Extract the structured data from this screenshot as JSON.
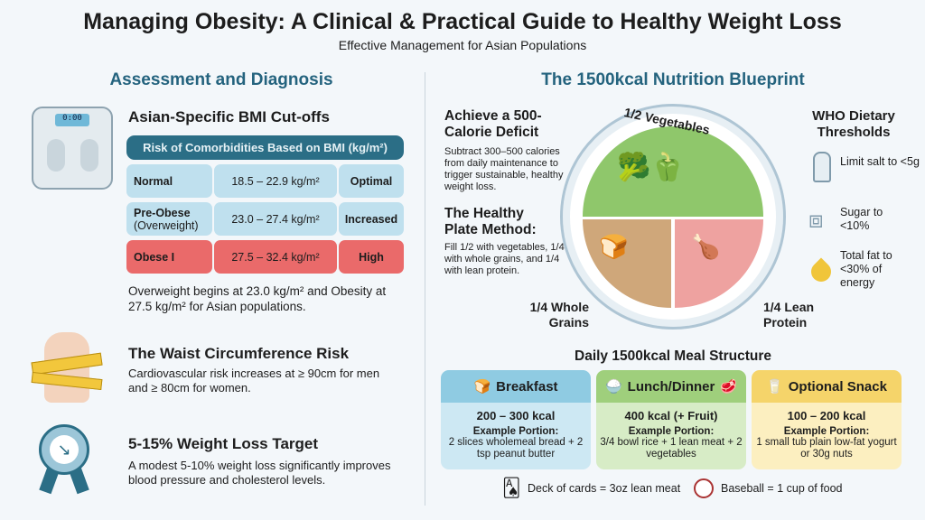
{
  "header": {
    "title": "Managing Obesity: A Clinical & Practical Guide to Healthy Weight Loss",
    "subtitle": "Effective Management for Asian Populations"
  },
  "left": {
    "section_title": "Assessment and Diagnosis",
    "bmi": {
      "title": "Asian-Specific BMI Cut-offs",
      "table_header": "Risk of Comorbidities Based on BMI (kg/m²)",
      "rows": [
        {
          "category": "Normal",
          "sub": "",
          "range": "18.5 – 22.9 kg/m²",
          "risk": "Optimal"
        },
        {
          "category": "Pre-Obese",
          "sub": "(Overweight)",
          "range": "23.0 – 27.4 kg/m²",
          "risk": "Increased"
        },
        {
          "category": "Obese I",
          "sub": "",
          "range": "27.5 – 32.4 kg/m²",
          "risk": "High"
        }
      ],
      "note": "Overweight begins at 23.0 kg/m² and Obesity at 27.5 kg/m² for Asian populations."
    },
    "waist": {
      "title": "The Waist Circumference Risk",
      "text": "Cardiovascular risk increases at ≥ 90cm for men and ≥ 80cm for women."
    },
    "target": {
      "title": "5-15% Weight Loss Target",
      "text": "A modest 5-10% weight loss significantly improves blood pressure and cholesterol levels."
    },
    "scale_display": "0:00"
  },
  "right": {
    "section_title": "The 1500kcal Nutrition Blueprint",
    "deficit": {
      "title": "Achieve a 500-Calorie Deficit",
      "text": "Subtract 300–500 calories from daily maintenance to trigger sustainable, healthy weight loss."
    },
    "plate_method": {
      "title": "The Healthy Plate Method:",
      "text": "Fill 1/2 with vegetables, 1/4 with whole grains, and 1/4 with lean protein."
    },
    "plate": {
      "vegetables": "1/2 Vegetables",
      "grains": "1/4 Whole Grains",
      "protein": "1/4 Lean Protein"
    },
    "who": {
      "title": "WHO Dietary Thresholds",
      "items": [
        {
          "icon": "salt-shaker-icon",
          "text": "Limit salt to <5g"
        },
        {
          "icon": "sugar-cubes-icon",
          "text": "Sugar to <10%"
        },
        {
          "icon": "oil-drop-icon",
          "text": "Total fat to <30% of energy"
        }
      ]
    },
    "meals": {
      "title": "Daily 1500kcal Meal Structure",
      "cards": [
        {
          "name": "Breakfast",
          "kcal": "200 – 300 kcal",
          "portion_label": "Example Portion:",
          "portion": "2 slices wholemeal bread + 2 tsp peanut butter",
          "color": "#8fcbe2",
          "body": "#cde8f3"
        },
        {
          "name": "Lunch/Dinner",
          "kcal": "400 kcal (+ Fruit)",
          "portion_label": "Example Portion:",
          "portion": "3/4 bowl rice + 1 lean meat + 2 vegetables",
          "color": "#9fcf7c",
          "body": "#d7ecc6"
        },
        {
          "name": "Optional Snack",
          "kcal": "100 – 200 kcal",
          "portion_label": "Example Portion:",
          "portion": "1 small tub plain low-fat yogurt or 30g nuts",
          "color": "#f5d46a",
          "body": "#fcefc0"
        }
      ]
    },
    "guides": [
      {
        "icon": "playing-cards-icon",
        "text": "Deck of cards = 3oz lean meat"
      },
      {
        "icon": "baseball-icon",
        "text": "Baseball = 1 cup of food"
      }
    ]
  }
}
